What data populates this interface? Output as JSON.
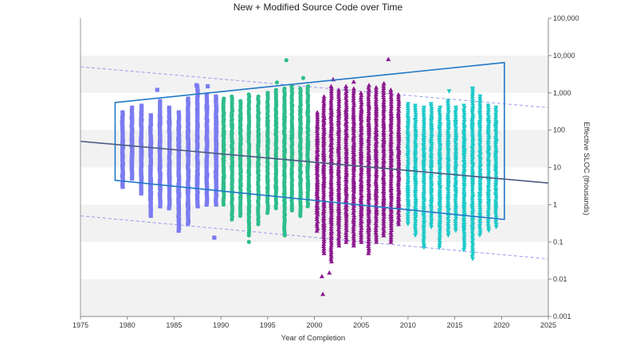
{
  "chart_data": {
    "type": "scatter",
    "title": "New + Modified Source Code over Time",
    "xlabel": "Year of Completion",
    "ylabel": "Effective SLOC (thousands)",
    "xlim": [
      1975,
      2025
    ],
    "ylim": [
      0.001,
      100000
    ],
    "yscale": "log",
    "y_axis_position": "right",
    "grid": "alternating horizontal bands",
    "x_ticks": [
      1975,
      1980,
      1985,
      1990,
      1995,
      2000,
      2005,
      2010,
      2015,
      2020,
      2025
    ],
    "y_ticks": [
      {
        "value": 0.001,
        "label": "0.001"
      },
      {
        "value": 0.01,
        "label": "0.01"
      },
      {
        "value": 0.1,
        "label": "0.1"
      },
      {
        "value": 1,
        "label": "1"
      },
      {
        "value": 10,
        "label": "10"
      },
      {
        "value": 100,
        "label": "100"
      },
      {
        "value": 1000,
        "label": "1,000"
      },
      {
        "value": 10000,
        "label": "10,000"
      },
      {
        "value": 100000,
        "label": "100,000"
      }
    ],
    "colors": {
      "era_1980s": "#7b7cf0",
      "era_1990s": "#2ebd8a",
      "era_2000s": "#8b1a8e",
      "era_2010s": "#1fc9c9",
      "trend": "#4a5a82",
      "envelope": "#1f78c8",
      "bound": "#9999ee",
      "band": "#f2f2f2"
    },
    "series": [
      {
        "marker": "square",
        "color": "#7b7cf0",
        "columns": [
          {
            "x": 1979.5,
            "y_min": 3,
            "y_max": 300
          },
          {
            "x": 1980.5,
            "y_min": 5,
            "y_max": 400
          },
          {
            "x": 1981.5,
            "y_min": 2,
            "y_max": 450
          },
          {
            "x": 1982.5,
            "y_min": 0.5,
            "y_max": 250
          },
          {
            "x": 1983.5,
            "y_min": 0.9,
            "y_max": 600
          },
          {
            "x": 1984.5,
            "y_min": 0.8,
            "y_max": 400
          },
          {
            "x": 1985.5,
            "y_min": 0.2,
            "y_max": 300
          },
          {
            "x": 1986.5,
            "y_min": 0.3,
            "y_max": 700
          },
          {
            "x": 1987.5,
            "y_min": 0.9,
            "y_max": 1500
          },
          {
            "x": 1988.5,
            "y_min": 1,
            "y_max": 900
          },
          {
            "x": 1989.5,
            "y_min": 1,
            "y_max": 800
          }
        ],
        "points": [
          {
            "x": 1983.2,
            "y": 1200
          },
          {
            "x": 1987.4,
            "y": 1600
          },
          {
            "x": 1988.6,
            "y": 1500
          },
          {
            "x": 1989.3,
            "y": 0.13
          }
        ]
      },
      {
        "marker": "circle",
        "color": "#2ebd8a",
        "columns": [
          {
            "x": 1990.3,
            "y_min": 1,
            "y_max": 700
          },
          {
            "x": 1991.2,
            "y_min": 0.4,
            "y_max": 800
          },
          {
            "x": 1992.1,
            "y_min": 0.5,
            "y_max": 600
          },
          {
            "x": 1993.0,
            "y_min": 0.15,
            "y_max": 900
          },
          {
            "x": 1994.0,
            "y_min": 0.3,
            "y_max": 800
          },
          {
            "x": 1995.0,
            "y_min": 0.6,
            "y_max": 1000
          },
          {
            "x": 1995.9,
            "y_min": 0.8,
            "y_max": 1200
          },
          {
            "x": 1996.8,
            "y_min": 0.15,
            "y_max": 1300
          },
          {
            "x": 1997.6,
            "y_min": 0.7,
            "y_max": 1500
          },
          {
            "x": 1998.5,
            "y_min": 0.5,
            "y_max": 1300
          },
          {
            "x": 1999.3,
            "y_min": 0.9,
            "y_max": 1500
          }
        ],
        "points": [
          {
            "x": 1996.0,
            "y": 1900
          },
          {
            "x": 1997.0,
            "y": 7500
          },
          {
            "x": 1998.8,
            "y": 2500
          },
          {
            "x": 1993.0,
            "y": 0.1
          }
        ]
      },
      {
        "marker": "triangle-up",
        "color": "#8b1a8e",
        "columns": [
          {
            "x": 2000.3,
            "y_min": 0.2,
            "y_max": 300
          },
          {
            "x": 2001.0,
            "y_min": 0.05,
            "y_max": 800
          },
          {
            "x": 2001.8,
            "y_min": 0.03,
            "y_max": 1500
          },
          {
            "x": 2002.6,
            "y_min": 0.08,
            "y_max": 1200
          },
          {
            "x": 2003.4,
            "y_min": 0.1,
            "y_max": 1500
          },
          {
            "x": 2004.2,
            "y_min": 0.08,
            "y_max": 1300
          },
          {
            "x": 2005.0,
            "y_min": 0.1,
            "y_max": 1000
          },
          {
            "x": 2005.8,
            "y_min": 0.05,
            "y_max": 1600
          },
          {
            "x": 2006.6,
            "y_min": 0.1,
            "y_max": 1400
          },
          {
            "x": 2007.4,
            "y_min": 0.15,
            "y_max": 1800
          },
          {
            "x": 2008.2,
            "y_min": 0.1,
            "y_max": 1200
          },
          {
            "x": 2009.0,
            "y_min": 0.3,
            "y_max": 900
          }
        ],
        "points": [
          {
            "x": 2000.9,
            "y": 0.004
          },
          {
            "x": 2000.8,
            "y": 0.012
          },
          {
            "x": 2001.6,
            "y": 0.015
          },
          {
            "x": 2007.9,
            "y": 8000
          },
          {
            "x": 2002.0,
            "y": 2300
          },
          {
            "x": 2004.2,
            "y": 2000
          }
        ]
      },
      {
        "marker": "triangle-down",
        "color": "#1fc9c9",
        "columns": [
          {
            "x": 2010.0,
            "y_min": 0.3,
            "y_max": 500
          },
          {
            "x": 2010.8,
            "y_min": 0.15,
            "y_max": 450
          },
          {
            "x": 2011.7,
            "y_min": 0.07,
            "y_max": 400
          },
          {
            "x": 2012.5,
            "y_min": 0.25,
            "y_max": 500
          },
          {
            "x": 2013.4,
            "y_min": 0.07,
            "y_max": 400
          },
          {
            "x": 2014.3,
            "y_min": 0.15,
            "y_max": 600
          },
          {
            "x": 2015.1,
            "y_min": 0.2,
            "y_max": 400
          },
          {
            "x": 2016.0,
            "y_min": 0.06,
            "y_max": 450
          },
          {
            "x": 2016.9,
            "y_min": 0.035,
            "y_max": 1200
          },
          {
            "x": 2017.7,
            "y_min": 0.15,
            "y_max": 800
          },
          {
            "x": 2018.6,
            "y_min": 0.2,
            "y_max": 450
          },
          {
            "x": 2019.4,
            "y_min": 0.25,
            "y_max": 400
          }
        ],
        "points": [
          {
            "x": 2014.4,
            "y": 1100
          },
          {
            "x": 2016.9,
            "y": 1300
          }
        ]
      }
    ],
    "trend_line": {
      "points": [
        [
          1975,
          50
        ],
        [
          2025,
          3.8
        ]
      ]
    },
    "prediction_bounds": [
      {
        "points": [
          [
            1975,
            5000
          ],
          [
            2025,
            400
          ]
        ]
      },
      {
        "points": [
          [
            1975,
            0.5
          ],
          [
            2025,
            0.035
          ]
        ]
      }
    ],
    "envelope": {
      "points": [
        [
          1978.7,
          550
        ],
        [
          2020.3,
          6500
        ],
        [
          2020.3,
          0.4
        ],
        [
          1978.7,
          4.5
        ]
      ]
    }
  }
}
